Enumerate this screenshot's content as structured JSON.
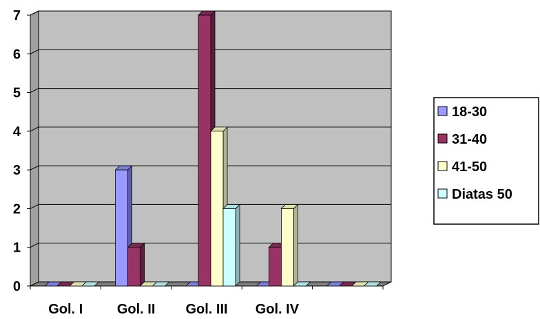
{
  "chart_data": {
    "type": "bar",
    "categories": [
      "Gol. I",
      "Gol. II",
      "Gol. III",
      "Gol. IV",
      ""
    ],
    "series": [
      {
        "name": "18-30",
        "values": [
          0,
          3,
          0,
          0,
          0
        ],
        "color": "#9999FF",
        "side_color": "#5E5EB0",
        "top_color": "#7C7CD9"
      },
      {
        "name": "31-40",
        "values": [
          0,
          1,
          7,
          1,
          0
        ],
        "color": "#993366",
        "side_color": "#5C1F3D",
        "top_color": "#7A2952"
      },
      {
        "name": "41-50",
        "values": [
          0,
          0,
          4,
          2,
          0
        ],
        "color": "#FFFFCC",
        "side_color": "#B3B38F",
        "top_color": "#E0E0B0"
      },
      {
        "name": "Diatas 50",
        "values": [
          0,
          0,
          2,
          0,
          0
        ],
        "color": "#CCFFFF",
        "side_color": "#8FB3B3",
        "top_color": "#B0E0E0"
      }
    ],
    "ylim": [
      0,
      7
    ],
    "yticks": [
      "0",
      "1",
      "2",
      "3",
      "4",
      "5",
      "6",
      "7"
    ],
    "grid": true,
    "legend_position": "right",
    "colors": {
      "plot_background": "#C0C0C0",
      "floor": "#808080",
      "gridline": "#000000"
    },
    "title": "",
    "xlabel": "",
    "ylabel": ""
  }
}
